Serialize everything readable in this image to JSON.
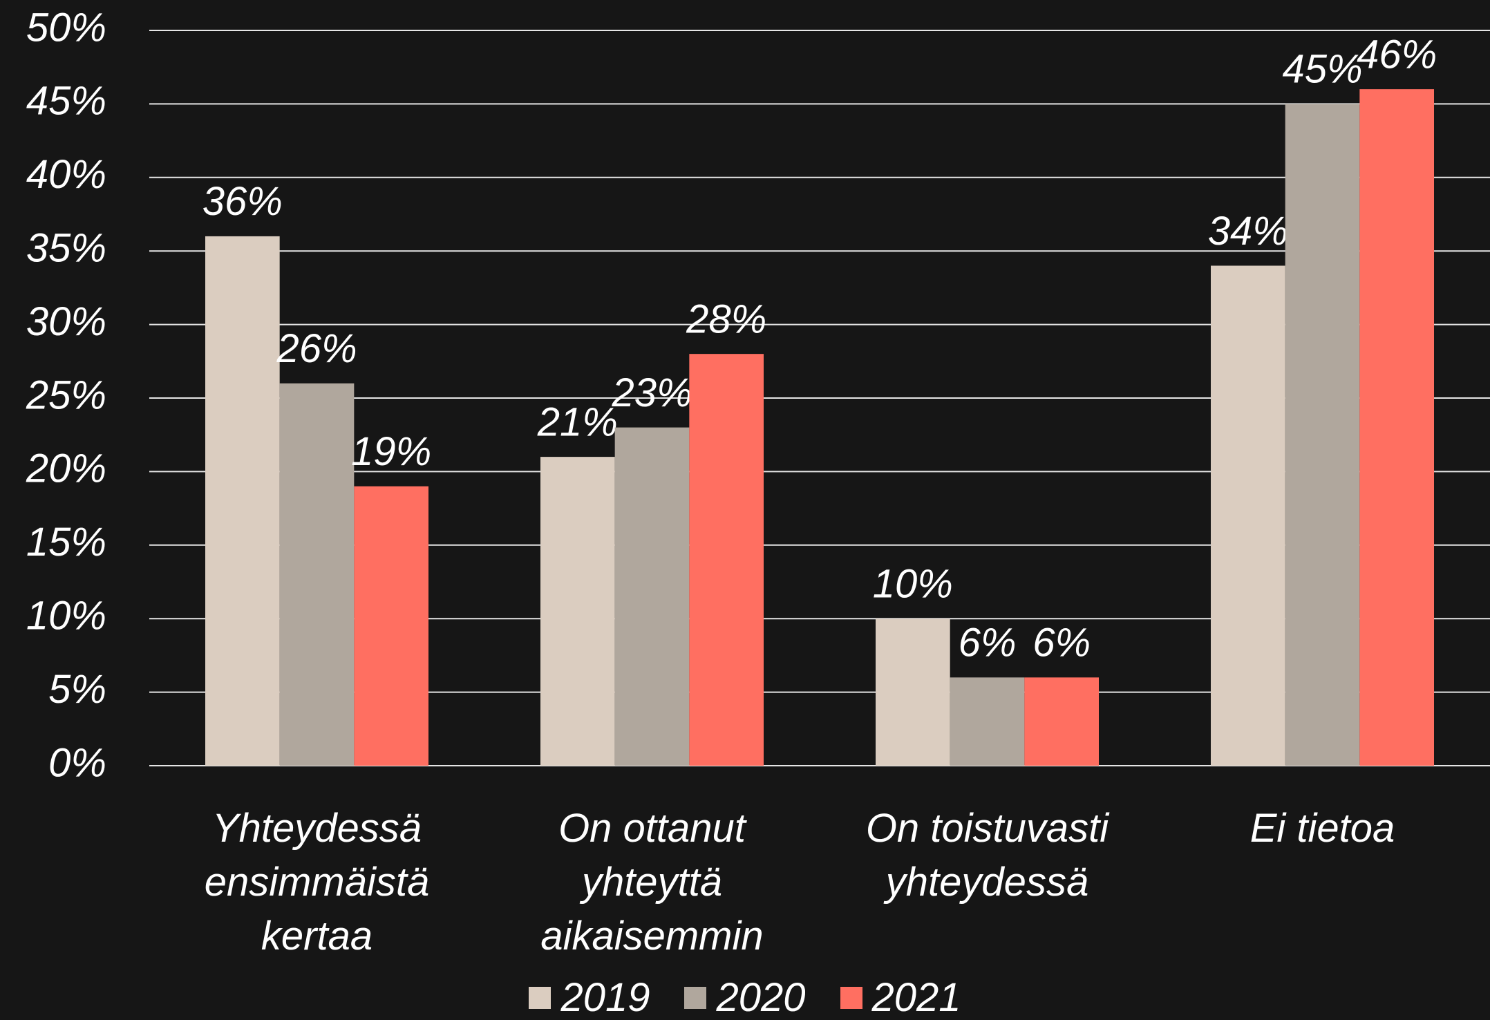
{
  "chart_data": {
    "type": "bar",
    "categories": [
      "Yhteydessä ensimmäistä kertaa",
      "On ottanut yhteyttä aikaisemmin",
      "On toistuvasti yhteydessä",
      "Ei tietoa"
    ],
    "series": [
      {
        "name": "2019",
        "color": "#dbcdc0",
        "values": [
          36,
          21,
          10,
          34
        ],
        "value_labels": [
          "36%",
          "21%",
          "10%",
          "34%"
        ]
      },
      {
        "name": "2020",
        "color": "#b0a79d",
        "values": [
          26,
          23,
          6,
          45
        ],
        "value_labels": [
          "26%",
          "23%",
          "6%",
          "45%"
        ]
      },
      {
        "name": "2021",
        "color": "#ff6f61",
        "values": [
          19,
          28,
          6,
          46
        ],
        "value_labels": [
          "19%",
          "28%",
          "6%",
          "46%"
        ]
      }
    ],
    "ylim": [
      0,
      50
    ],
    "yticks": [
      {
        "value": 0,
        "label": "0%"
      },
      {
        "value": 5,
        "label": "5%"
      },
      {
        "value": 10,
        "label": "10%"
      },
      {
        "value": 15,
        "label": "15%"
      },
      {
        "value": 20,
        "label": "20%"
      },
      {
        "value": 25,
        "label": "25%"
      },
      {
        "value": 30,
        "label": "30%"
      },
      {
        "value": 35,
        "label": "35%"
      },
      {
        "value": 40,
        "label": "40%"
      },
      {
        "value": 45,
        "label": "45%"
      },
      {
        "value": 50,
        "label": "50%"
      }
    ],
    "grid": true,
    "legend": "bottom"
  }
}
